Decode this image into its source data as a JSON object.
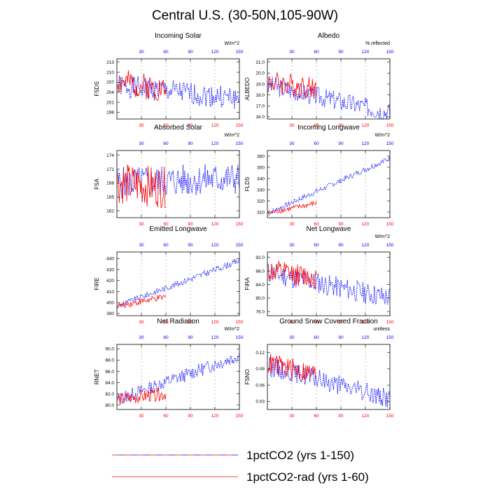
{
  "title": "Central U.S. (30-50N,105-90W)",
  "colors": {
    "exp1": "#0000ff",
    "exp2": "#ff0000"
  },
  "legend": [
    {
      "label": "1pctCO2 (yrs 1-150)",
      "style": "dashed-blue-red"
    },
    {
      "label": "1pctCO2-rad (yrs 1-60)",
      "style": "solid-red"
    }
  ],
  "chart_data": [
    {
      "type": "line",
      "title": "Incoming Solar",
      "units": "W/m^2",
      "ylabel": "FSDS",
      "xlim": [
        0,
        150
      ],
      "ylim": [
        196,
        214
      ],
      "yticks": [
        "198",
        "201",
        "204",
        "207",
        "210",
        "213"
      ],
      "xticks": [
        30,
        60,
        90,
        120,
        150
      ],
      "grid": "vertical dashed at x ticks",
      "series": [
        {
          "name": "1pctCO2 (yrs 1-150)",
          "years": [
            1,
            150
          ],
          "mean_start": 206.0,
          "mean_end": 202.0,
          "spread": 3.4,
          "seed": 1
        },
        {
          "name": "1pctCO2-rad (yrs 1-60)",
          "years": [
            1,
            60
          ],
          "mean_start": 207.0,
          "mean_end": 205.0,
          "spread": 4.0,
          "seed": 2
        }
      ]
    },
    {
      "type": "line",
      "title": "Albedo",
      "units": "% reflected",
      "ylabel": "ALBEDO",
      "xlim": [
        0,
        150
      ],
      "ylim": [
        15.8,
        21.3
      ],
      "yticks": [
        "16.0",
        "17.0",
        "18.0",
        "19.0",
        "20.0",
        "21.0"
      ],
      "xticks": [
        30,
        60,
        90,
        120,
        150
      ],
      "grid": "vertical dashed at x ticks",
      "series": [
        {
          "name": "1pctCO2 (yrs 1-150)",
          "years": [
            1,
            150
          ],
          "mean_start": 18.9,
          "mean_end": 16.4,
          "spread": 0.9,
          "seed": 3
        },
        {
          "name": "1pctCO2-rad (yrs 1-60)",
          "years": [
            1,
            60
          ],
          "mean_start": 19.2,
          "mean_end": 18.6,
          "spread": 1.1,
          "seed": 4
        }
      ]
    },
    {
      "type": "line",
      "title": "Absorbed Solar",
      "units": "W/m^2",
      "ylabel": "FSA",
      "xlim": [
        0,
        150
      ],
      "ylim": [
        160.5,
        175
      ],
      "yticks": [
        "162",
        "165",
        "168",
        "171",
        "174"
      ],
      "xticks": [
        30,
        60,
        90,
        120,
        150
      ],
      "grid": "vertical dashed at x ticks",
      "series": [
        {
          "name": "1pctCO2 (yrs 1-150)",
          "years": [
            1,
            150
          ],
          "mean_start": 168.0,
          "mean_end": 169.0,
          "spread": 3.5,
          "seed": 5
        },
        {
          "name": "1pctCO2-rad (yrs 1-60)",
          "years": [
            1,
            60
          ],
          "mean_start": 168.0,
          "mean_end": 167.0,
          "spread": 4.5,
          "seed": 6
        }
      ]
    },
    {
      "type": "line",
      "title": "Incoming Longwave",
      "units": "W/m^2",
      "ylabel": "FLDS",
      "xlim": [
        0,
        150
      ],
      "ylim": [
        305,
        365
      ],
      "yticks": [
        "310",
        "320",
        "330",
        "340",
        "350",
        "360"
      ],
      "xticks": [
        30,
        60,
        90,
        120,
        150
      ],
      "grid": "vertical dashed at x ticks",
      "series": [
        {
          "name": "1pctCO2 (yrs 1-150)",
          "years": [
            1,
            150
          ],
          "mean_start": 309.0,
          "mean_end": 358.0,
          "spread": 2.4,
          "seed": 7
        },
        {
          "name": "1pctCO2-rad (yrs 1-60)",
          "years": [
            1,
            60
          ],
          "mean_start": 309.0,
          "mean_end": 318.0,
          "spread": 2.4,
          "seed": 8
        }
      ]
    },
    {
      "type": "line",
      "title": "Emitted Longwave",
      "units": "",
      "ylabel": "FIRE",
      "xlim": [
        0,
        150
      ],
      "ylim": [
        388,
        446
      ],
      "yticks": [
        "390",
        "400",
        "410",
        "420",
        "430",
        "440"
      ],
      "xticks": [
        30,
        60,
        90,
        120,
        150
      ],
      "grid": "vertical dashed at x ticks",
      "series": [
        {
          "name": "1pctCO2 (yrs 1-150)",
          "years": [
            1,
            150
          ],
          "mean_start": 397.0,
          "mean_end": 438.0,
          "spread": 2.8,
          "seed": 9
        },
        {
          "name": "1pctCO2-rad (yrs 1-60)",
          "years": [
            1,
            60
          ],
          "mean_start": 397.0,
          "mean_end": 405.0,
          "spread": 3.0,
          "seed": 10
        }
      ]
    },
    {
      "type": "line",
      "title": "Net Longwave",
      "units": "W/m^2",
      "ylabel": "FIRA",
      "xlim": [
        0,
        150
      ],
      "ylim": [
        74.8,
        93.6
      ],
      "yticks": [
        "76.0",
        "80.0",
        "84.0",
        "88.0",
        "92.0"
      ],
      "xticks": [
        30,
        60,
        90,
        120,
        150
      ],
      "grid": "vertical dashed at x ticks",
      "series": [
        {
          "name": "1pctCO2 (yrs 1-150)",
          "years": [
            1,
            150
          ],
          "mean_start": 87.5,
          "mean_end": 80.0,
          "spread": 3.2,
          "seed": 11
        },
        {
          "name": "1pctCO2-rad (yrs 1-60)",
          "years": [
            1,
            60
          ],
          "mean_start": 88.0,
          "mean_end": 86.0,
          "spread": 3.4,
          "seed": 12
        }
      ]
    },
    {
      "type": "line",
      "title": "Net Radiation",
      "units": "W/m^2",
      "ylabel": "RNET",
      "xlim": [
        0,
        150
      ],
      "ylim": [
        79.2,
        90.8
      ],
      "yticks": [
        "80.0",
        "82.0",
        "84.0",
        "86.0",
        "88.0",
        "90.0"
      ],
      "xticks": [
        30,
        60,
        90,
        120,
        150
      ],
      "grid": "vertical dashed at x ticks",
      "series": [
        {
          "name": "1pctCO2 (yrs 1-150)",
          "years": [
            1,
            150
          ],
          "mean_start": 81.0,
          "mean_end": 88.8,
          "spread": 1.2,
          "seed": 13
        },
        {
          "name": "1pctCO2-rad (yrs 1-60)",
          "years": [
            1,
            60
          ],
          "mean_start": 81.0,
          "mean_end": 82.0,
          "spread": 1.2,
          "seed": 14
        }
      ]
    },
    {
      "type": "line",
      "title": "Ground Snow Covered Fraction",
      "units": "unitless",
      "ylabel": "FSNO",
      "xlim": [
        0,
        150
      ],
      "ylim": [
        0.015,
        0.135
      ],
      "yticks": [
        "0.03",
        "0.06",
        "0.09",
        "0.12"
      ],
      "xticks": [
        30,
        60,
        90,
        120,
        150
      ],
      "grid": "vertical dashed at x ticks",
      "series": [
        {
          "name": "1pctCO2 (yrs 1-150)",
          "years": [
            1,
            150
          ],
          "mean_start": 0.095,
          "mean_end": 0.035,
          "spread": 0.018,
          "seed": 15
        },
        {
          "name": "1pctCO2-rad (yrs 1-60)",
          "years": [
            1,
            60
          ],
          "mean_start": 0.1,
          "mean_end": 0.08,
          "spread": 0.02,
          "seed": 16
        }
      ]
    }
  ]
}
